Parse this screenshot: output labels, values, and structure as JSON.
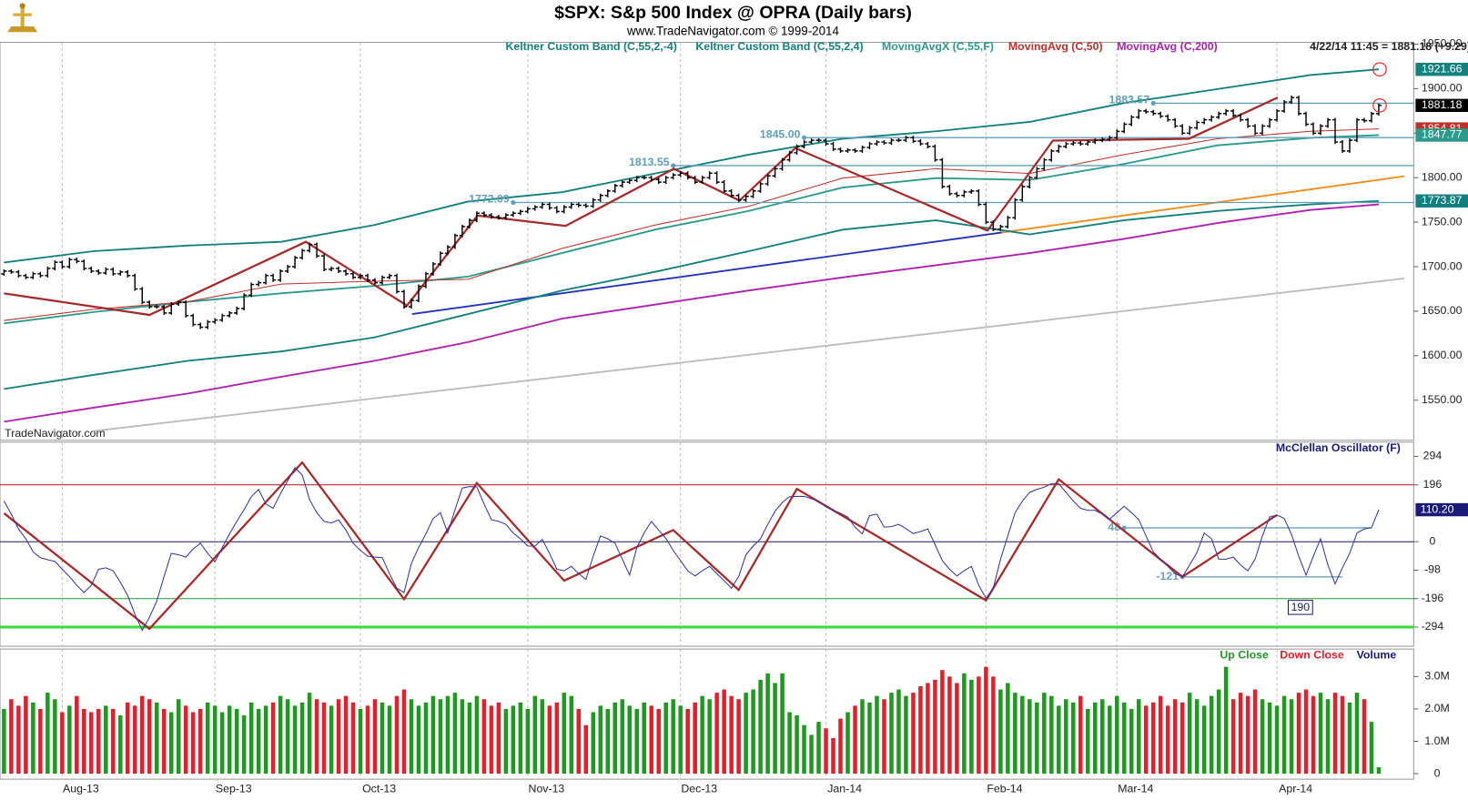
{
  "header": {
    "title": "$SPX:  S&p 500 Index @ OPRA  (Daily bars)",
    "subtitle": "www.TradeNavigator.com © 1999-2014",
    "quote": "4/22/14 11:45 = 1881.18 (+9.29)"
  },
  "watermark": "TradeNavigator.com",
  "chart_data": [
    {
      "type": "ohlc",
      "color": "#000000",
      "xlim": [
        -0.55,
        193.8
      ],
      "xticks": [
        {
          "value": 8,
          "label": "Aug-13"
        },
        {
          "value": 29,
          "label": "Sep-13"
        },
        {
          "value": 49,
          "label": "Oct-13"
        },
        {
          "value": 72,
          "label": "Nov-13"
        },
        {
          "value": 93,
          "label": "Dec-13"
        },
        {
          "value": 113,
          "label": "Jan-14"
        },
        {
          "value": 135,
          "label": "Feb-14"
        },
        {
          "value": 153,
          "label": "Mar-14"
        },
        {
          "value": 175,
          "label": "Apr-14"
        }
      ],
      "xgrid": true,
      "ylim": [
        1505,
        1952
      ],
      "yticks": [
        {
          "value": 1550,
          "label": "1550.00"
        },
        {
          "value": 1600,
          "label": "1600.00"
        },
        {
          "value": 1650,
          "label": "1650.00"
        },
        {
          "value": 1700,
          "label": "1700.00"
        },
        {
          "value": 1750,
          "label": "1750.00"
        },
        {
          "value": 1800,
          "label": "1800.00"
        },
        {
          "value": 1850,
          "label": "1850.00"
        },
        {
          "value": 1900,
          "label": "1900.00"
        },
        {
          "value": 1950,
          "label": "1950.00"
        }
      ],
      "values": [
        1695,
        1694,
        1690,
        1688,
        1692,
        1690,
        1698,
        1705,
        1700,
        1708,
        1706,
        1698,
        1695,
        1693,
        1697,
        1692,
        1694,
        1690,
        1675,
        1660,
        1655,
        1655,
        1648,
        1658,
        1660,
        1645,
        1635,
        1632,
        1638,
        1640,
        1645,
        1648,
        1653,
        1668,
        1680,
        1682,
        1690,
        1685,
        1695,
        1700,
        1710,
        1718,
        1725,
        1712,
        1697,
        1698,
        1695,
        1692,
        1688,
        1690,
        1685,
        1682,
        1688,
        1690,
        1672,
        1655,
        1662,
        1678,
        1692,
        1703,
        1715,
        1722,
        1735,
        1745,
        1752,
        1760,
        1758,
        1756,
        1755,
        1758,
        1760,
        1762,
        1765,
        1767,
        1770,
        1766,
        1762,
        1767,
        1770,
        1769,
        1768,
        1775,
        1780,
        1785,
        1791,
        1795,
        1797,
        1800,
        1800,
        1798,
        1795,
        1800,
        1803,
        1805,
        1800,
        1795,
        1800,
        1805,
        1795,
        1785,
        1780,
        1775,
        1779,
        1785,
        1793,
        1802,
        1810,
        1820,
        1828,
        1835,
        1840,
        1842,
        1842,
        1838,
        1832,
        1830,
        1831,
        1830,
        1834,
        1838,
        1840,
        1839,
        1842,
        1842,
        1845,
        1841,
        1838,
        1835,
        1820,
        1790,
        1782,
        1780,
        1784,
        1785,
        1770,
        1750,
        1742,
        1745,
        1755,
        1775,
        1790,
        1800,
        1810,
        1820,
        1830,
        1835,
        1838,
        1839,
        1838,
        1840,
        1842,
        1843,
        1845,
        1852,
        1860,
        1868,
        1875,
        1874,
        1872,
        1869,
        1865,
        1858,
        1850,
        1856,
        1862,
        1865,
        1868,
        1872,
        1875,
        1870,
        1865,
        1858,
        1850,
        1858,
        1865,
        1875,
        1885,
        1890,
        1872,
        1860,
        1850,
        1858,
        1865,
        1840,
        1830,
        1842,
        1865,
        1864,
        1871.89,
        1881.18
      ],
      "series": [
        {
          "name": "Keltner Custom Band (C,55,2,-4)",
          "color": "#12807e",
          "axis_label": true,
          "x": [
            0,
            12.3,
            25.2,
            38.1,
            50.9,
            63.8,
            76.7,
            89.5,
            102.4,
            115.3,
            128.1,
            141,
            153.9,
            166.8,
            179.6,
            189
          ],
          "values": [
            1562.6,
            1578.4,
            1594.2,
            1604.7,
            1620.5,
            1646.8,
            1673.2,
            1694.2,
            1717.4,
            1741.6,
            1752.1,
            1736.3,
            1752.1,
            1762.6,
            1770,
            1773.87
          ]
        },
        {
          "name": "Keltner Custom Band (C,55,2,4)",
          "color": "#12807e",
          "axis_label": true,
          "x": [
            0,
            12.3,
            25.2,
            38.1,
            50.9,
            63.8,
            76.7,
            89.5,
            102.4,
            115.3,
            128.1,
            141,
            153.9,
            166.8,
            179.6,
            189
          ],
          "values": [
            1704.7,
            1717.4,
            1723.7,
            1727.9,
            1746.8,
            1773.2,
            1783.7,
            1804.7,
            1825.8,
            1843.7,
            1852.1,
            1862.6,
            1883.7,
            1899.5,
            1915.3,
            1921.66
          ]
        },
        {
          "name": "MovingAvgX (C,55,F)",
          "color": "#2a9a8c",
          "axis_label": true,
          "x": [
            0,
            12.3,
            25.2,
            38.1,
            50.9,
            63.8,
            76.7,
            89.5,
            102.4,
            115.3,
            128.1,
            141,
            153.9,
            166.8,
            179.6,
            189
          ],
          "values": [
            1636.3,
            1649,
            1660.5,
            1670,
            1678.4,
            1688.9,
            1715.3,
            1741.6,
            1762.6,
            1788.9,
            1799.5,
            1797.4,
            1815.3,
            1836.3,
            1844.7,
            1847.77
          ]
        },
        {
          "name": "MovingAvg (C,50)",
          "color": "#c0302a",
          "axis_label": true,
          "x": [
            0,
            12.3,
            25.2,
            38.1,
            50.9,
            63.8,
            76.7,
            89.5,
            102.4,
            115.3,
            128.1,
            141,
            153.9,
            166.8,
            179.6,
            189
          ],
          "values": [
            1639.5,
            1652.1,
            1660.5,
            1680.5,
            1683.7,
            1685.8,
            1720.5,
            1746.8,
            1767.9,
            1799.5,
            1810,
            1804.7,
            1825.8,
            1843.7,
            1852.1,
            1854.81
          ]
        },
        {
          "name": "MovingAvg (C,200)",
          "color": "#b020b0",
          "x": [
            0,
            12.3,
            25.2,
            38.1,
            50.9,
            63.8,
            76.7,
            89.5,
            102.4,
            115.3,
            128.1,
            141,
            153.9,
            166.8,
            179.6,
            189
          ],
          "values": [
            1525.8,
            1541.6,
            1557.4,
            1576.3,
            1594.2,
            1615.3,
            1641.6,
            1657.4,
            1673.2,
            1687.9,
            1701.6,
            1715.3,
            1731.1,
            1749,
            1763.7,
            1770
          ]
        }
      ],
      "zigzag": {
        "color": "#a52a2a",
        "x": [
          0,
          20,
          41.5,
          55.4,
          65.1,
          77.2,
          92.1,
          101.1,
          108.8,
          135.2,
          144.2,
          162.9,
          175.1
        ],
        "values": [
          1670,
          1645.8,
          1727.9,
          1656.3,
          1757.4,
          1745.8,
          1810,
          1774.2,
          1833.2,
          1740.5,
          1841.6,
          1843.7,
          1890
        ]
      },
      "trendlines": [
        {
          "color": "#bbbbbb",
          "x": [
            12.3,
            192.5
          ],
          "values": [
            1515.3,
            1686.8
          ]
        },
        {
          "color": "#2233bb",
          "x": [
            56.1,
            137.2
          ],
          "values": [
            1646.8,
            1738.4
          ]
        },
        {
          "color": "#f08c1a",
          "x": [
            137.2,
            192.5
          ],
          "values": [
            1738.4,
            1801.6
          ]
        }
      ],
      "level_color": "#5e9fbc",
      "levels": [
        {
          "value": 1772.09,
          "from": 70
        },
        {
          "value": 1813.55,
          "from": 92
        },
        {
          "value": 1845,
          "label": "1845.00",
          "from": 110
        },
        {
          "value": 1883.57,
          "from": 158
        }
      ]
    },
    {
      "type": "line",
      "title": "McClellan Oscillator (F)",
      "color": "#3535a0",
      "ylim": [
        -360,
        343
      ],
      "yticks": [
        294,
        196,
        0,
        -98,
        -196,
        -294
      ],
      "values": [
        140,
        95,
        44,
        10,
        -35,
        -55,
        -62,
        -68,
        -95,
        -120,
        -150,
        -175,
        -150,
        -95,
        -90,
        -100,
        -140,
        -185,
        -250,
        -305,
        -260,
        -205,
        -120,
        -40,
        -45,
        -53,
        -25,
        -5,
        -40,
        -69,
        -20,
        27,
        70,
        110,
        155,
        180,
        130,
        115,
        165,
        210,
        255,
        230,
        145,
        100,
        70,
        65,
        75,
        40,
        -5,
        -30,
        -50,
        -53,
        -55,
        -110,
        -160,
        -175,
        -75,
        -20,
        27,
        80,
        100,
        30,
        110,
        185,
        190,
        189,
        130,
        76,
        70,
        60,
        30,
        10,
        -15,
        -15,
        8,
        -40,
        -95,
        -100,
        -85,
        -110,
        -130,
        -50,
        20,
        10,
        -5,
        -60,
        -115,
        -20,
        30,
        70,
        40,
        11,
        -30,
        -65,
        -100,
        -118,
        -100,
        -85,
        -110,
        -134,
        -160,
        -120,
        -45,
        -15,
        10,
        60,
        105,
        135,
        155,
        156,
        156,
        148,
        140,
        120,
        108,
        98,
        85,
        50,
        27,
        90,
        95,
        50,
        52,
        60,
        45,
        28,
        35,
        44,
        -10,
        -65,
        -95,
        -118,
        -100,
        -85,
        -150,
        -195,
        -160,
        -60,
        20,
        100,
        140,
        170,
        180,
        188,
        200,
        200,
        170,
        140,
        115,
        108,
        108,
        95,
        78,
        100,
        122,
        100,
        76,
        20,
        -35,
        -60,
        -85,
        -110,
        -121,
        -80,
        -37,
        30,
        10,
        -60,
        -60,
        -53,
        -80,
        -100,
        -60,
        20,
        85,
        92,
        80,
        25,
        -50,
        -115,
        -50,
        10,
        -80,
        -145,
        -90,
        -40,
        30,
        44,
        48,
        110.2
      ],
      "last_value_label": "110.20",
      "reference_lines": [
        {
          "value": 196,
          "color": "#b03030"
        },
        {
          "value": 0,
          "color": "#1a1a5a"
        },
        {
          "value": -196,
          "color": "#2a9a2a"
        },
        {
          "value": -294,
          "color": "#33dd33"
        }
      ],
      "zigzag": {
        "color": "#a52a2a",
        "x": [
          0,
          20,
          41,
          55,
          65,
          77,
          92,
          101,
          109,
          135,
          145,
          162,
          175
        ],
        "values": [
          98,
          -300,
          273,
          -198,
          202,
          -134,
          40,
          -166,
          182,
          -202,
          215,
          -121,
          92
        ]
      },
      "level_color": "#6aa0c0",
      "levels": [
        {
          "value": 48,
          "from": 154,
          "to": 188
        },
        {
          "value": -121,
          "from": 162,
          "to": 184
        }
      ],
      "annotations": [
        "190"
      ]
    },
    {
      "type": "bar",
      "ylim": [
        -0.17,
        3.85
      ],
      "yticks": [
        0,
        {
          "value": 1,
          "label": "1.0M"
        },
        {
          "value": 2,
          "label": "2.0M"
        },
        {
          "value": 3,
          "label": "3.0M"
        }
      ],
      "legend": [
        {
          "name": "Up Close",
          "color": "#1e9a1e"
        },
        {
          "name": "Down Close",
          "color": "#e0202a"
        },
        {
          "name": "Volume",
          "color": "#1a1a7a"
        }
      ],
      "values": [
        2.0,
        2.3,
        2.1,
        2.4,
        2.2,
        2.0,
        2.5,
        2.3,
        1.9,
        2.1,
        2.4,
        2.0,
        1.9,
        2.0,
        2.1,
        2.0,
        1.8,
        2.2,
        2.1,
        2.4,
        2.3,
        2.2,
        2.0,
        1.9,
        2.3,
        2.1,
        1.9,
        2.0,
        2.2,
        2.1,
        1.9,
        2.1,
        2.0,
        1.8,
        2.2,
        2.0,
        2.1,
        2.2,
        2.4,
        2.3,
        2.1,
        2.2,
        2.5,
        2.3,
        2.2,
        2.1,
        2.3,
        2.4,
        2.2,
        2.0,
        2.1,
        2.3,
        2.2,
        2.1,
        2.4,
        2.6,
        2.3,
        2.1,
        2.2,
        2.4,
        2.3,
        2.4,
        2.5,
        2.3,
        2.2,
        2.4,
        2.3,
        2.1,
        2.2,
        2.0,
        2.1,
        2.2,
        2.0,
        2.4,
        2.3,
        2.1,
        2.2,
        2.5,
        2.4,
        2.0,
        1.5,
        1.9,
        2.1,
        2.0,
        2.2,
        2.3,
        2.1,
        2.0,
        2.2,
        2.1,
        2.0,
        2.2,
        2.3,
        2.1,
        2.0,
        2.2,
        2.4,
        2.3,
        2.5,
        2.6,
        2.4,
        2.3,
        2.5,
        2.6,
        2.9,
        3.1,
        2.8,
        3.1,
        1.9,
        1.8,
        1.5,
        1.2,
        1.6,
        1.4,
        1.1,
        1.7,
        1.9,
        2.1,
        2.3,
        2.2,
        2.4,
        2.3,
        2.5,
        2.6,
        2.4,
        2.5,
        2.7,
        2.8,
        2.9,
        3.2,
        3.0,
        2.8,
        3.1,
        2.9,
        3.0,
        3.3,
        3.0,
        2.6,
        2.8,
        2.5,
        2.4,
        2.3,
        2.2,
        2.5,
        2.4,
        2.1,
        2.3,
        2.2,
        2.4,
        2.0,
        2.2,
        2.3,
        2.1,
        2.4,
        2.2,
        2.0,
        2.3,
        2.1,
        2.2,
        2.4,
        2.1,
        2.3,
        2.2,
        2.5,
        2.3,
        2.1,
        2.4,
        2.6,
        3.3,
        2.3,
        2.5,
        2.4,
        2.6,
        2.3,
        2.2,
        2.1,
        2.4,
        2.3,
        2.5,
        2.6,
        2.4,
        2.5,
        2.3,
        2.5,
        2.4,
        2.2,
        2.5,
        2.3,
        1.6,
        0.2
      ]
    }
  ]
}
